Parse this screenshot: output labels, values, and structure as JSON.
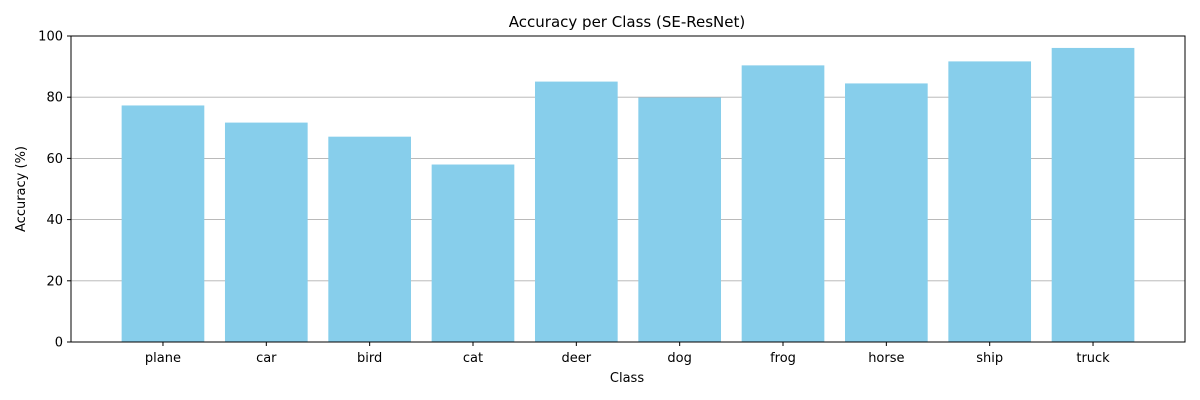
{
  "chart_data": {
    "type": "bar",
    "title": "Accuracy per Class (SE-ResNet)",
    "xlabel": "Class",
    "ylabel": "Accuracy (%)",
    "categories": [
      "plane",
      "car",
      "bird",
      "cat",
      "deer",
      "dog",
      "frog",
      "horse",
      "ship",
      "truck"
    ],
    "values": [
      77.3,
      71.7,
      67.1,
      58.0,
      85.1,
      79.9,
      90.4,
      84.5,
      91.7,
      96.1
    ],
    "ylim": [
      0,
      100
    ],
    "yticks": [
      0,
      20,
      40,
      60,
      80,
      100
    ],
    "grid": "horizontal",
    "bar_color": "#87ceeb"
  }
}
